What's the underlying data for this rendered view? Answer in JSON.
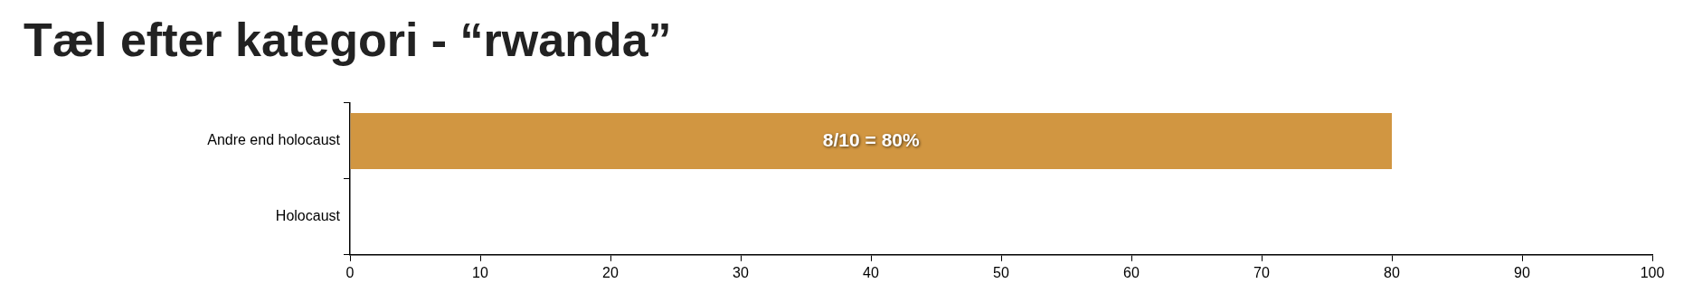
{
  "chart_data": {
    "type": "bar",
    "orientation": "horizontal",
    "title": "Tæl efter kategori - “rwanda”",
    "categories": [
      "Andre end holocaust",
      "Holocaust"
    ],
    "values": [
      80,
      0
    ],
    "color": "#d19641",
    "value_labels": [
      "8/10 = 80%",
      null
    ],
    "xlim": [
      0,
      100
    ],
    "xticks": [
      0,
      10,
      20,
      30,
      40,
      50,
      60,
      70,
      80,
      90,
      100
    ],
    "grid": false,
    "legend": false
  }
}
